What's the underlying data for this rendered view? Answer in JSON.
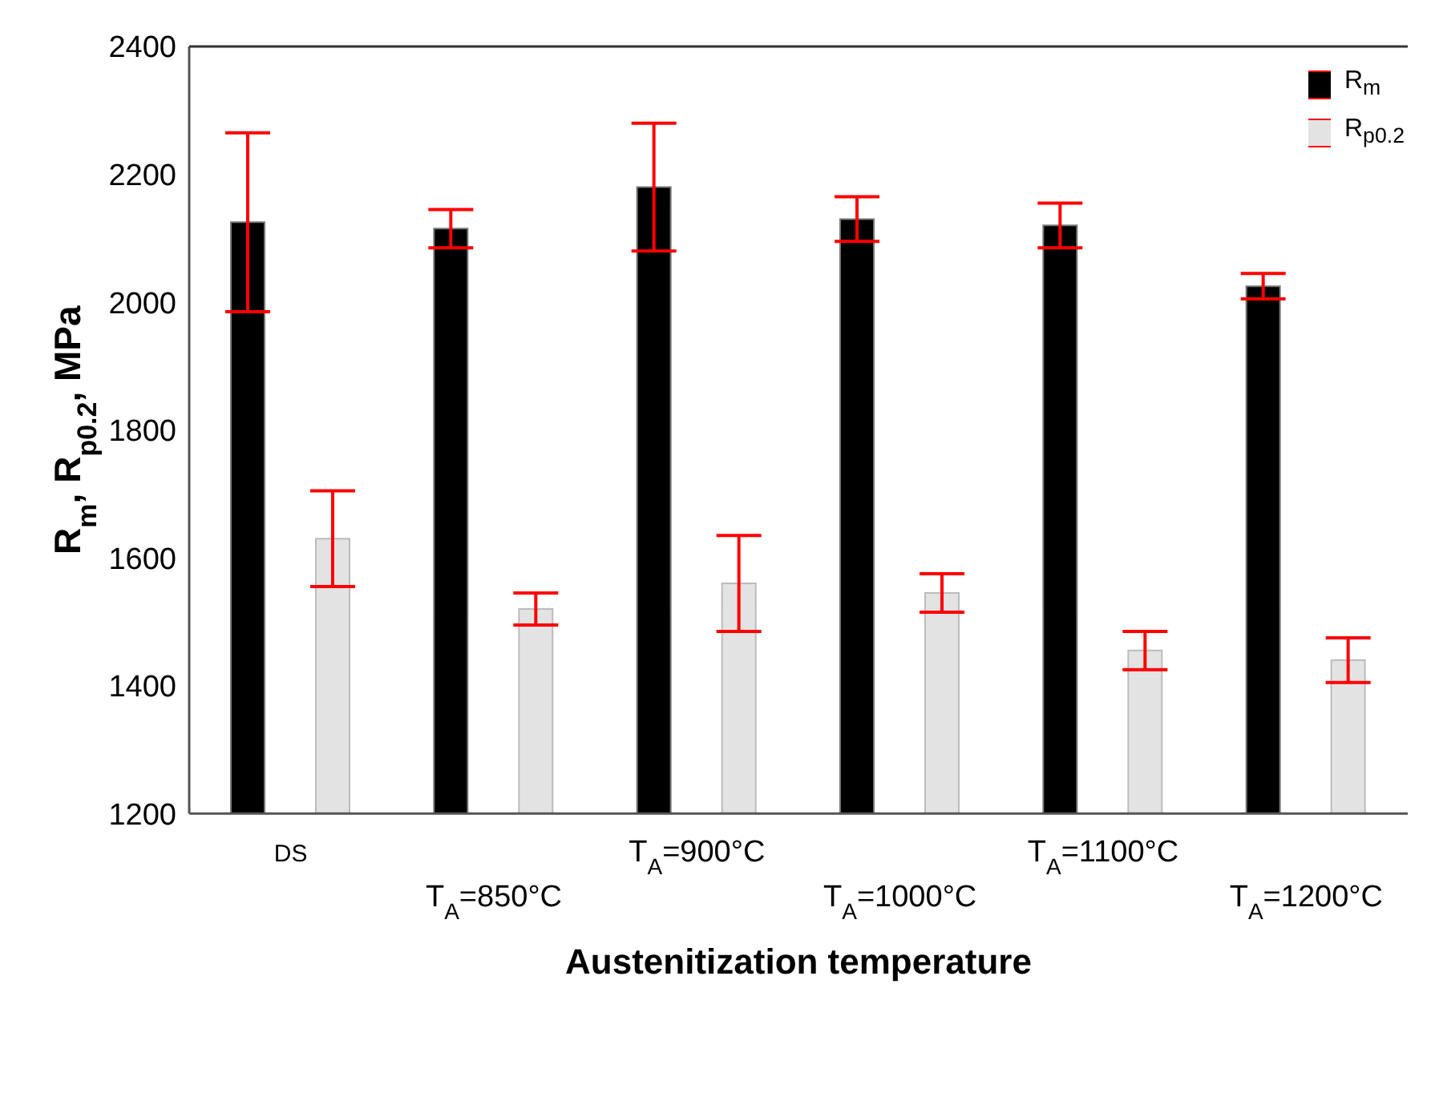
{
  "chart_data": {
    "type": "bar",
    "xlabel": "Austenitization temperature",
    "ylabel": "R$_{m}$, R$_{p0.2}$, MPa",
    "categories": [
      "DS",
      "T$_{A}$=850°C",
      "T$_{A}$=900°C",
      "T$_{A}$=1000°C",
      "T$_{A}$=1100°C",
      "T$_{A}$=1200°C"
    ],
    "series": [
      {
        "name": "R$_{m}$",
        "color": "#000000",
        "values": [
          2125,
          2115,
          2180,
          2130,
          2120,
          2025
        ],
        "errors": [
          140,
          30,
          100,
          35,
          35,
          20
        ]
      },
      {
        "name": "R$_{p0.2}$",
        "color": "#e3e3e3",
        "values": [
          1630,
          1520,
          1560,
          1545,
          1455,
          1440
        ],
        "errors": [
          75,
          25,
          75,
          30,
          30,
          35
        ]
      }
    ],
    "ylim": [
      1200,
      2400
    ],
    "yticks": [
      1200,
      1400,
      1600,
      1800,
      2000,
      2200,
      2400
    ],
    "legend": "top right"
  }
}
